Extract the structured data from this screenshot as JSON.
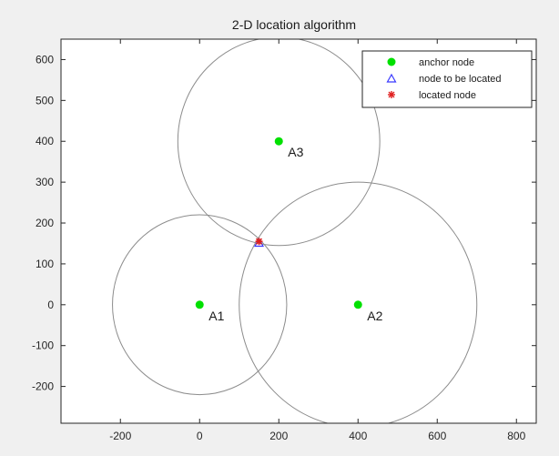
{
  "chart_data": {
    "type": "scatter",
    "title": "2-D location algorithm",
    "xlabel": "",
    "ylabel": "",
    "xlim": [
      -350,
      850
    ],
    "ylim": [
      -290,
      650
    ],
    "xticks": [
      -200,
      0,
      200,
      400,
      600,
      800
    ],
    "yticks": [
      -200,
      -100,
      0,
      100,
      200,
      300,
      400,
      500,
      600
    ],
    "grid": false,
    "legend_position": "top-right",
    "anchors": [
      {
        "label": "A1",
        "x": 0,
        "y": 0,
        "radius": 220
      },
      {
        "label": "A2",
        "x": 400,
        "y": 0,
        "radius": 300
      },
      {
        "label": "A3",
        "x": 200,
        "y": 400,
        "radius": 255
      }
    ],
    "node_to_be_located": {
      "x": 150,
      "y": 150
    },
    "located_node": {
      "x": 150,
      "y": 155
    },
    "legend": [
      {
        "name": "anchor node",
        "marker": "dot",
        "color": "#00e000"
      },
      {
        "name": "node to be located",
        "marker": "triangle",
        "color": "#3a3aff"
      },
      {
        "name": "located node",
        "marker": "star",
        "color": "#e02020"
      }
    ]
  }
}
